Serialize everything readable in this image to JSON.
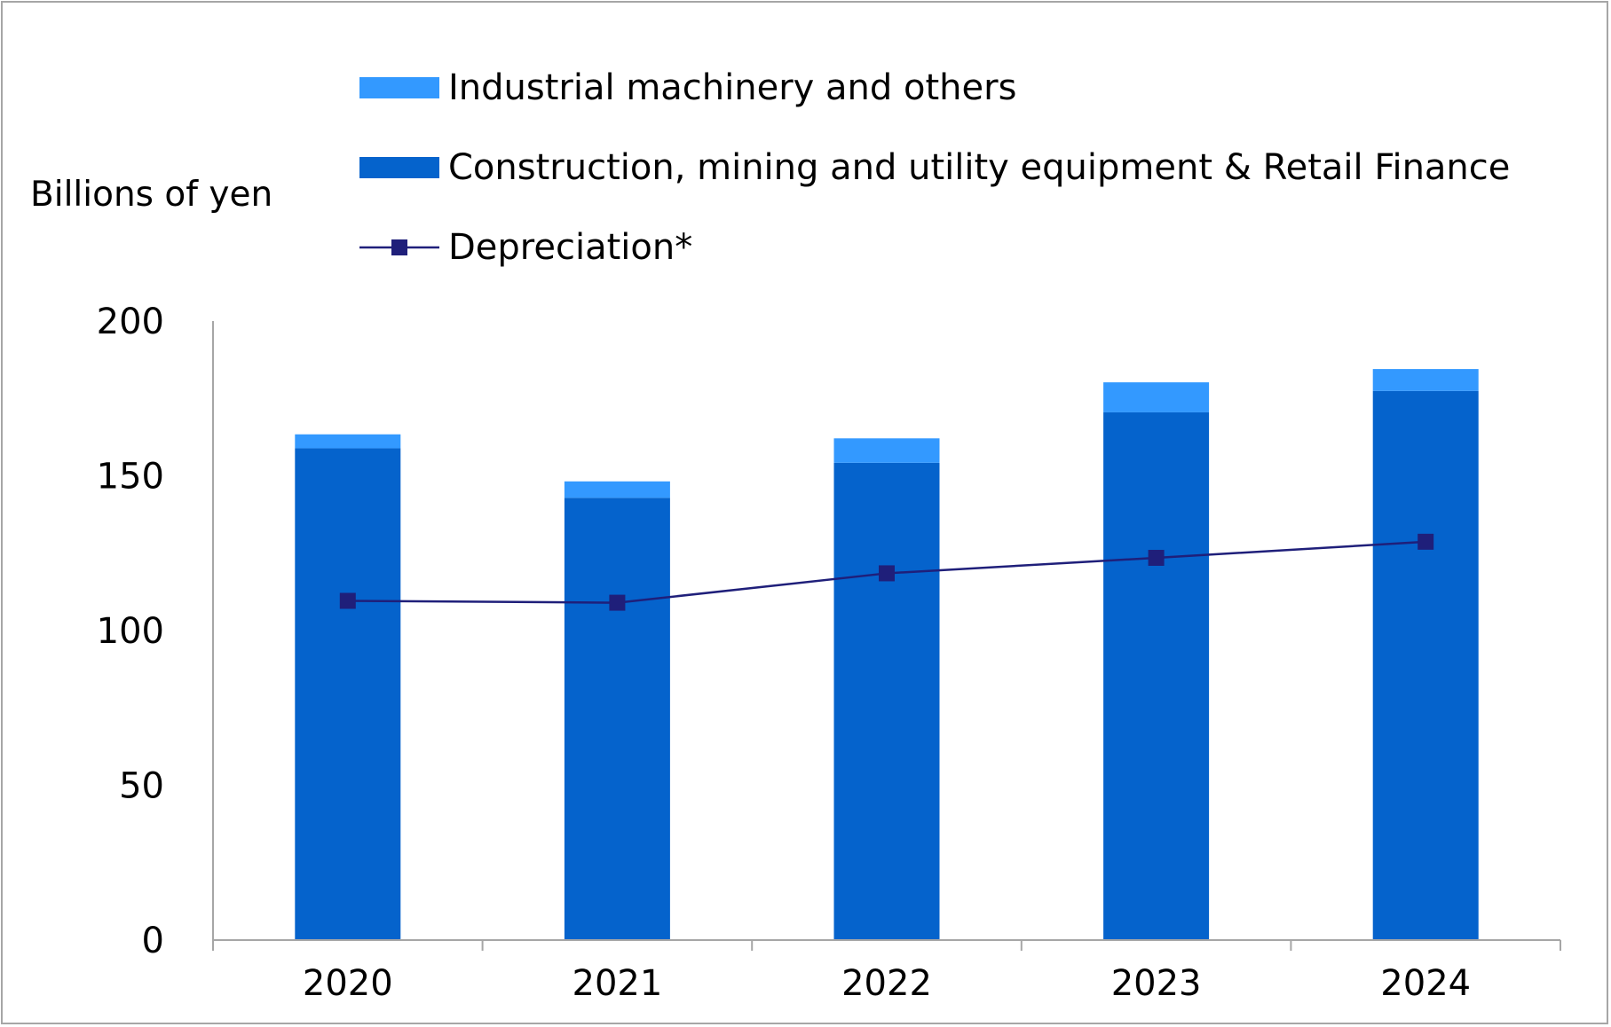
{
  "chart_data": {
    "type": "bar",
    "stacked": true,
    "categories": [
      "2020",
      "2021",
      "2022",
      "2023",
      "2024"
    ],
    "series": [
      {
        "name": "Construction, mining and utility equipment & Retail Finance",
        "kind": "bar",
        "color": "#0563cc",
        "values": [
          158.9,
          142.9,
          154.2,
          170.5,
          177.4
        ]
      },
      {
        "name": "Industrial machinery and others",
        "kind": "bar",
        "color": "#3399ff",
        "values": [
          4.5,
          5.3,
          7.9,
          9.7,
          7.1
        ]
      },
      {
        "name": "Depreciation*",
        "kind": "line",
        "color": "#1f1f7a",
        "marker": "square",
        "values": [
          109.6,
          109.0,
          118.5,
          123.5,
          128.7
        ]
      }
    ],
    "ylabel": "Billions of yen",
    "ylim": [
      0,
      200
    ],
    "yticks": [
      "0",
      "50",
      "100",
      "150",
      "200"
    ],
    "grid": false,
    "legend": "top"
  },
  "legend": {
    "items": [
      {
        "label": "Industrial machinery and others",
        "color": "#3399ff",
        "icon": "bar-swatch"
      },
      {
        "label": "Construction, mining and utility equipment & Retail Finance",
        "color": "#0563cc",
        "icon": "bar-swatch"
      },
      {
        "label": "Depreciation*",
        "color": "#1f1f7a",
        "icon": "line-square-marker"
      }
    ]
  },
  "units_label": "Billions of yen"
}
